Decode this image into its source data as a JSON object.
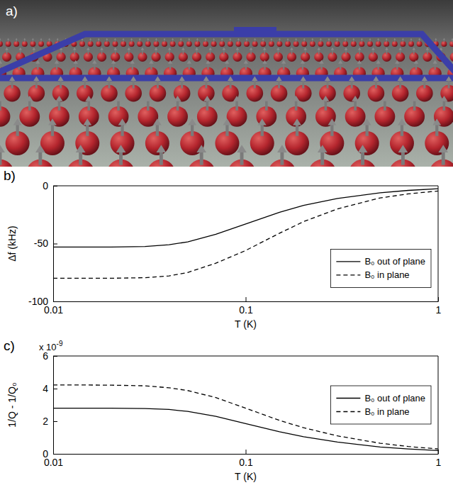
{
  "image_panel": {
    "label": "a)"
  },
  "chart_data": [
    {
      "type": "line",
      "label": "b)",
      "xlabel": "T (K)",
      "ylabel": "Δf (kHz)",
      "log": "x",
      "legend": "lower right",
      "x": [
        0.01,
        0.015,
        0.02,
        0.03,
        0.04,
        0.05,
        0.07,
        0.1,
        0.15,
        0.2,
        0.3,
        0.5,
        0.7,
        1
      ],
      "xlim": [
        0.01,
        1
      ],
      "xticks": [
        0.01,
        0.1,
        1
      ],
      "ylim": [
        -100,
        0
      ],
      "yticks": [
        -100,
        -50,
        0
      ],
      "series": [
        {
          "name": "B₀ out of plane",
          "color": "#000000",
          "line_style": "solid",
          "values": [
            -53,
            -53,
            -53,
            -52.5,
            -51,
            -48.5,
            -42,
            -33,
            -23,
            -17,
            -11,
            -6,
            -4,
            -2.5
          ]
        },
        {
          "name": "B₀ in plane",
          "color": "#000000",
          "line_style": "dashed",
          "values": [
            -80,
            -80,
            -80,
            -79.5,
            -78,
            -75,
            -67,
            -56,
            -41,
            -31,
            -20,
            -10.5,
            -7,
            -4.5
          ]
        }
      ]
    },
    {
      "type": "line",
      "label": "c)",
      "xlabel": "T (K)",
      "ylabel": "1/Q - 1/Q₀",
      "log": "x",
      "legend": "right",
      "y_multiplier": {
        "text": "x 10",
        "exponent": "-9"
      },
      "x": [
        0.01,
        0.015,
        0.02,
        0.03,
        0.04,
        0.05,
        0.07,
        0.1,
        0.15,
        0.2,
        0.3,
        0.5,
        0.7,
        1
      ],
      "xlim": [
        0.01,
        1
      ],
      "xticks": [
        0.01,
        0.1,
        1
      ],
      "ylim": [
        0,
        6e-09
      ],
      "yticks": [
        {
          "value": 0,
          "label": "0"
        },
        {
          "value": 2e-09,
          "label": "2"
        },
        {
          "value": 4e-09,
          "label": "4"
        },
        {
          "value": 6e-09,
          "label": "6"
        }
      ],
      "series": [
        {
          "name": "B₀ out of plane",
          "color": "#000000",
          "line_style": "solid",
          "values": [
            2.8e-09,
            2.8e-09,
            2.8e-09,
            2.78e-09,
            2.72e-09,
            2.6e-09,
            2.3e-09,
            1.85e-09,
            1.35e-09,
            1.05e-09,
            7.2e-10,
            4.2e-10,
            3e-10,
            2e-10
          ]
        },
        {
          "name": "B₀ in plane",
          "color": "#000000",
          "line_style": "dashed",
          "values": [
            4.22e-09,
            4.22e-09,
            4.21e-09,
            4.17e-09,
            4.05e-09,
            3.88e-09,
            3.45e-09,
            2.8e-09,
            2.05e-09,
            1.6e-09,
            1.1e-09,
            6.5e-10,
            4.5e-10,
            3e-10
          ]
        }
      ]
    }
  ]
}
